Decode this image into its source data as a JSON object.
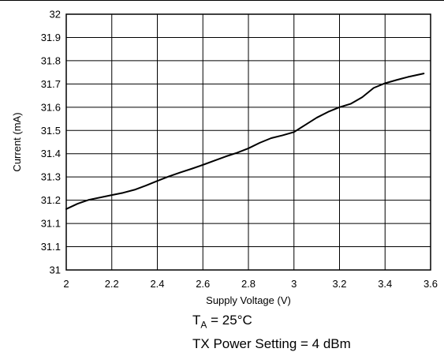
{
  "chart_data": {
    "type": "line",
    "title": "",
    "xlabel": "Supply Voltage (V)",
    "ylabel": "Current (mA)",
    "xlim": [
      2,
      3.6
    ],
    "ylim": [
      31,
      32
    ],
    "x_ticks": [
      "2",
      "2.2",
      "2.4",
      "2.6",
      "2.8",
      "3",
      "3.2",
      "3.4",
      "3.6"
    ],
    "y_ticks": [
      "31",
      "31.1",
      "31.1",
      "31.2",
      "31.3",
      "31.4",
      "31.5",
      "31.6",
      "31.7",
      "31.8",
      "31.9",
      "32"
    ],
    "grid": true,
    "series": [
      {
        "x": [
          2.0,
          2.05,
          2.1,
          2.15,
          2.2,
          2.25,
          2.3,
          2.35,
          2.4,
          2.45,
          2.5,
          2.55,
          2.6,
          2.65,
          2.7,
          2.75,
          2.8,
          2.85,
          2.9,
          2.95,
          3.0,
          3.05,
          3.1,
          3.15,
          3.2,
          3.25,
          3.3,
          3.35,
          3.4,
          3.45,
          3.5,
          3.57
        ],
        "y": [
          31.262,
          31.285,
          31.302,
          31.312,
          31.322,
          31.332,
          31.345,
          31.363,
          31.383,
          31.402,
          31.419,
          31.435,
          31.452,
          31.47,
          31.488,
          31.504,
          31.523,
          31.547,
          31.567,
          31.579,
          31.593,
          31.624,
          31.655,
          31.68,
          31.7,
          31.715,
          31.743,
          31.783,
          31.803,
          31.817,
          31.83,
          31.845
        ]
      }
    ],
    "color": "#000000"
  },
  "annotations": {
    "temp_prefix": "T",
    "temp_sub": "A",
    "temp_suffix": " = 25°C",
    "power": "TX Power Setting = 4 dBm"
  }
}
